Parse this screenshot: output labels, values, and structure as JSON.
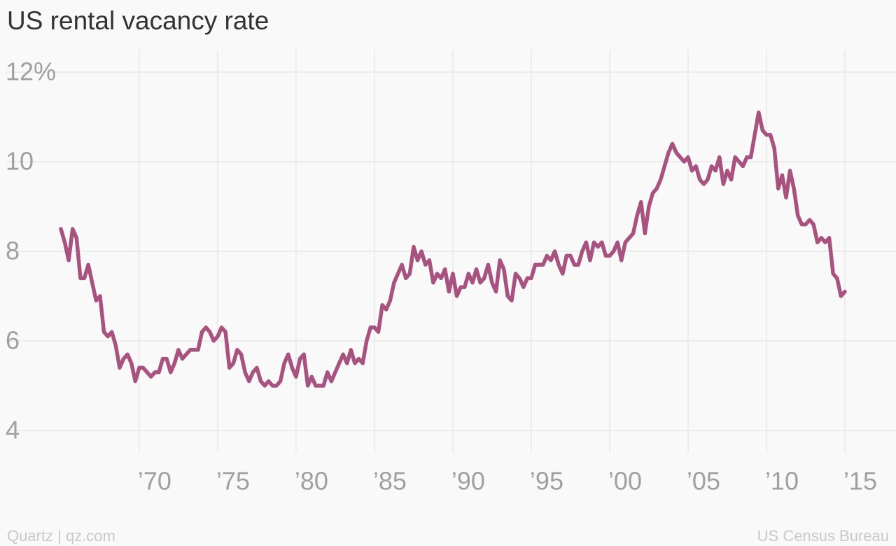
{
  "chart_data": {
    "type": "line",
    "title": "US rental vacancy rate",
    "source_left": "Quartz | qz.com",
    "source_right": "US Census Bureau",
    "x": [
      1965,
      1965.25,
      1965.5,
      1965.75,
      1966,
      1966.25,
      1966.5,
      1966.75,
      1967,
      1967.25,
      1967.5,
      1967.75,
      1968,
      1968.25,
      1968.5,
      1968.75,
      1969,
      1969.25,
      1969.5,
      1969.75,
      1970,
      1970.25,
      1970.5,
      1970.75,
      1971,
      1971.25,
      1971.5,
      1971.75,
      1972,
      1972.25,
      1972.5,
      1972.75,
      1973,
      1973.25,
      1973.5,
      1973.75,
      1974,
      1974.25,
      1974.5,
      1974.75,
      1975,
      1975.25,
      1975.5,
      1975.75,
      1976,
      1976.25,
      1976.5,
      1976.75,
      1977,
      1977.25,
      1977.5,
      1977.75,
      1978,
      1978.25,
      1978.5,
      1978.75,
      1979,
      1979.25,
      1979.5,
      1979.75,
      1980,
      1980.25,
      1980.5,
      1980.75,
      1981,
      1981.25,
      1981.5,
      1981.75,
      1982,
      1982.25,
      1982.5,
      1982.75,
      1983,
      1983.25,
      1983.5,
      1983.75,
      1984,
      1984.25,
      1984.5,
      1984.75,
      1985,
      1985.25,
      1985.5,
      1985.75,
      1986,
      1986.25,
      1986.5,
      1986.75,
      1987,
      1987.25,
      1987.5,
      1987.75,
      1988,
      1988.25,
      1988.5,
      1988.75,
      1989,
      1989.25,
      1989.5,
      1989.75,
      1990,
      1990.25,
      1990.5,
      1990.75,
      1991,
      1991.25,
      1991.5,
      1991.75,
      1992,
      1992.25,
      1992.5,
      1992.75,
      1993,
      1993.25,
      1993.5,
      1993.75,
      1994,
      1994.25,
      1994.5,
      1994.75,
      1995,
      1995.25,
      1995.5,
      1995.75,
      1996,
      1996.25,
      1996.5,
      1996.75,
      1997,
      1997.25,
      1997.5,
      1997.75,
      1998,
      1998.25,
      1998.5,
      1998.75,
      1999,
      1999.25,
      1999.5,
      1999.75,
      2000,
      2000.25,
      2000.5,
      2000.75,
      2001,
      2001.25,
      2001.5,
      2001.75,
      2002,
      2002.25,
      2002.5,
      2002.75,
      2003,
      2003.25,
      2003.5,
      2003.75,
      2004,
      2004.25,
      2004.5,
      2004.75,
      2005,
      2005.25,
      2005.5,
      2005.75,
      2006,
      2006.25,
      2006.5,
      2006.75,
      2007,
      2007.25,
      2007.5,
      2007.75,
      2008,
      2008.25,
      2008.5,
      2008.75,
      2009,
      2009.25,
      2009.5,
      2009.75,
      2010,
      2010.25,
      2010.5,
      2010.75,
      2011,
      2011.25,
      2011.5,
      2011.75,
      2012,
      2012.25,
      2012.5,
      2012.75,
      2013,
      2013.25,
      2013.5,
      2013.75,
      2014,
      2014.25,
      2014.5,
      2014.75,
      2015
    ],
    "series": [
      {
        "name": "Rental vacancy rate",
        "color": "#a8537f",
        "values": [
          8.5,
          8.2,
          7.8,
          8.5,
          8.3,
          7.4,
          7.4,
          7.7,
          7.3,
          6.9,
          7.0,
          6.2,
          6.1,
          6.2,
          5.9,
          5.4,
          5.6,
          5.7,
          5.5,
          5.1,
          5.4,
          5.4,
          5.3,
          5.2,
          5.3,
          5.3,
          5.6,
          5.6,
          5.3,
          5.5,
          5.8,
          5.6,
          5.7,
          5.8,
          5.8,
          5.8,
          6.2,
          6.3,
          6.2,
          6.0,
          6.1,
          6.3,
          6.2,
          5.4,
          5.5,
          5.8,
          5.7,
          5.3,
          5.1,
          5.3,
          5.4,
          5.1,
          5.0,
          5.1,
          5.0,
          5.0,
          5.1,
          5.5,
          5.7,
          5.4,
          5.2,
          5.6,
          5.7,
          5.0,
          5.2,
          5.0,
          5.0,
          5.0,
          5.3,
          5.1,
          5.3,
          5.5,
          5.7,
          5.5,
          5.8,
          5.5,
          5.6,
          5.5,
          6.0,
          6.3,
          6.3,
          6.2,
          6.8,
          6.7,
          6.9,
          7.3,
          7.5,
          7.7,
          7.4,
          7.5,
          8.1,
          7.8,
          8.0,
          7.7,
          7.8,
          7.3,
          7.5,
          7.4,
          7.6,
          7.1,
          7.5,
          7.0,
          7.2,
          7.2,
          7.5,
          7.3,
          7.6,
          7.3,
          7.4,
          7.7,
          7.3,
          7.1,
          7.8,
          7.6,
          7.0,
          6.9,
          7.5,
          7.4,
          7.2,
          7.4,
          7.4,
          7.7,
          7.7,
          7.7,
          7.9,
          7.8,
          8.0,
          7.7,
          7.5,
          7.9,
          7.9,
          7.7,
          7.7,
          8.0,
          8.2,
          7.8,
          8.2,
          8.1,
          8.2,
          7.9,
          7.9,
          8.0,
          8.2,
          7.8,
          8.2,
          8.3,
          8.4,
          8.8,
          9.1,
          8.4,
          9.0,
          9.3,
          9.4,
          9.6,
          9.9,
          10.2,
          10.4,
          10.2,
          10.1,
          10.0,
          10.1,
          9.8,
          9.9,
          9.6,
          9.5,
          9.6,
          9.9,
          9.8,
          10.1,
          9.5,
          9.8,
          9.6,
          10.1,
          10.0,
          9.9,
          10.1,
          10.1,
          10.6,
          11.1,
          10.7,
          10.6,
          10.6,
          10.3,
          9.4,
          9.7,
          9.2,
          9.8,
          9.4,
          8.8,
          8.6,
          8.6,
          8.7,
          8.6,
          8.2,
          8.3,
          8.2,
          8.3,
          7.5,
          7.4,
          7.0,
          7.1
        ]
      }
    ],
    "xlim": [
      1961.12,
      2018.26
    ],
    "xticks": [
      {
        "value": 1970,
        "label": "’70"
      },
      {
        "value": 1975,
        "label": "’75"
      },
      {
        "value": 1980,
        "label": "’80"
      },
      {
        "value": 1985,
        "label": "’85"
      },
      {
        "value": 1990,
        "label": "’90"
      },
      {
        "value": 1995,
        "label": "’95"
      },
      {
        "value": 2000,
        "label": "’00"
      },
      {
        "value": 2005,
        "label": "’05"
      },
      {
        "value": 2010,
        "label": "’10"
      },
      {
        "value": 2015,
        "label": "’15"
      }
    ],
    "ylim": [
      3.5,
      12.5
    ],
    "yticks": [
      4,
      6,
      8,
      10,
      {
        "value": 12,
        "label": "12%"
      }
    ],
    "grid": true
  }
}
